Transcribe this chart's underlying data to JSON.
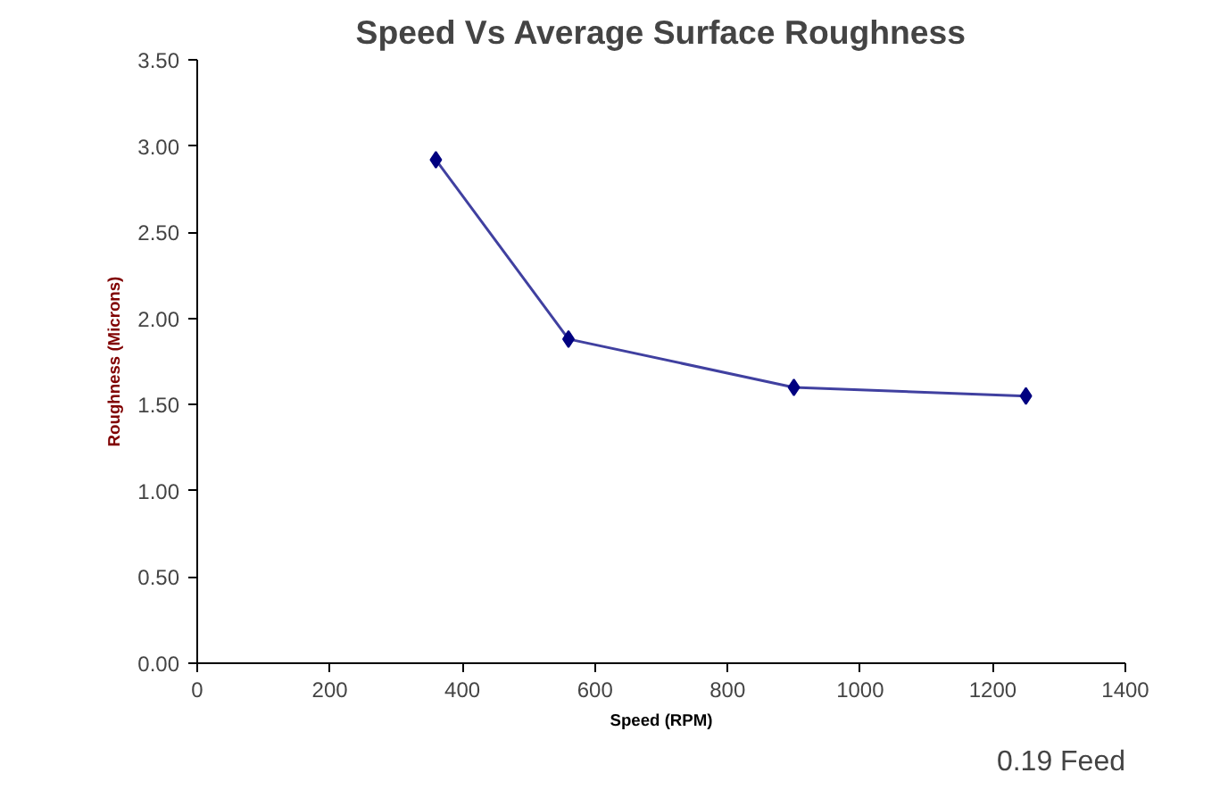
{
  "chart_data": {
    "type": "line",
    "title": "Speed Vs Average Surface Roughness",
    "xlabel": "Speed (RPM)",
    "ylabel": "Roughness (Microns)",
    "x": [
      360,
      560,
      900,
      1250
    ],
    "series": [
      {
        "color": "#000080",
        "values": [
          2.92,
          1.88,
          1.6,
          1.55
        ]
      }
    ],
    "xlim": [
      0,
      1400
    ],
    "xticks": [
      0,
      200,
      400,
      600,
      800,
      1000,
      1200,
      1400
    ],
    "ylim": [
      0,
      3.5
    ],
    "yticks": [
      {
        "value": 0,
        "label": "0.00"
      },
      {
        "value": 0.5,
        "label": "0.50"
      },
      {
        "value": 1,
        "label": "1.00"
      },
      {
        "value": 1.5,
        "label": "1.50"
      },
      {
        "value": 2,
        "label": "2.00"
      },
      {
        "value": 2.5,
        "label": "2.50"
      },
      {
        "value": 3,
        "label": "3.00"
      },
      {
        "value": 3.5,
        "label": "3.50"
      }
    ],
    "marker": "diamond",
    "line_style": "solid",
    "grid": false,
    "annotations": [
      "0.19 Feed"
    ]
  }
}
